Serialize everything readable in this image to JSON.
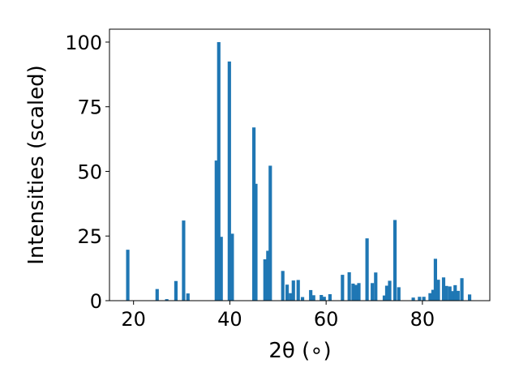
{
  "chart_data": {
    "type": "bar",
    "xlabel": "2θ (∘)",
    "ylabel": "Intensities (scaled)",
    "xlim": [
      15,
      94
    ],
    "ylim": [
      0,
      105
    ],
    "xticks": [
      20,
      40,
      60,
      80
    ],
    "yticks": [
      0,
      25,
      50,
      75,
      100
    ],
    "bar_color": "#1f77b4",
    "bar_width": 0.7,
    "grid": false,
    "legend": "none",
    "x": [
      18.8,
      24.9,
      26.9,
      28.8,
      30.4,
      31.3,
      37.2,
      37.7,
      38.2,
      39.9,
      40.5,
      45.0,
      45.4,
      47.3,
      47.9,
      48.4,
      51.0,
      51.9,
      52.6,
      53.2,
      54.2,
      55.1,
      56.8,
      57.4,
      59.0,
      59.6,
      60.8,
      63.4,
      64.8,
      65.6,
      66.2,
      66.8,
      68.5,
      69.6,
      70.3,
      72.1,
      72.6,
      73.2,
      74.3,
      75.1,
      78.1,
      79.4,
      80.3,
      81.6,
      82.2,
      82.7,
      83.3,
      84.4,
      85.0,
      85.7,
      86.3,
      86.8,
      87.4,
      88.2,
      89.8
    ],
    "values": [
      19.7,
      4.5,
      0.6,
      7.6,
      31.0,
      2.8,
      54.2,
      100.0,
      24.7,
      92.5,
      25.9,
      67.0,
      45.2,
      16.0,
      19.3,
      52.2,
      11.5,
      6.2,
      2.9,
      7.8,
      8.0,
      1.4,
      4.1,
      2.1,
      2.2,
      1.5,
      2.5,
      10.0,
      11.0,
      6.6,
      6.1,
      6.8,
      24.1,
      6.8,
      10.9,
      2.0,
      5.8,
      7.7,
      31.2,
      5.2,
      1.2,
      1.5,
      1.5,
      2.9,
      4.2,
      16.2,
      8.1,
      9.0,
      5.7,
      5.5,
      3.7,
      6.0,
      3.8,
      8.7,
      2.4
    ]
  }
}
